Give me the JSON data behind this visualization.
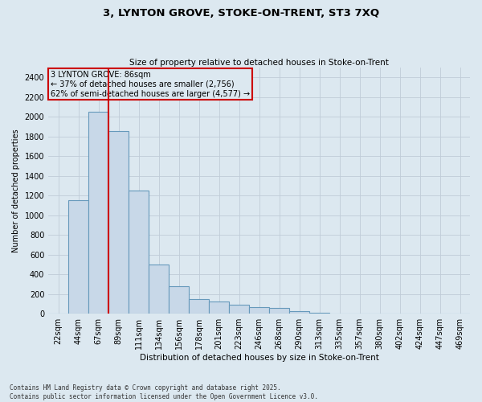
{
  "title_line1": "3, LYNTON GROVE, STOKE-ON-TRENT, ST3 7XQ",
  "title_line2": "Size of property relative to detached houses in Stoke-on-Trent",
  "xlabel": "Distribution of detached houses by size in Stoke-on-Trent",
  "ylabel": "Number of detached properties",
  "bar_labels": [
    "22sqm",
    "44sqm",
    "67sqm",
    "89sqm",
    "111sqm",
    "134sqm",
    "156sqm",
    "178sqm",
    "201sqm",
    "223sqm",
    "246sqm",
    "268sqm",
    "290sqm",
    "313sqm",
    "335sqm",
    "357sqm",
    "380sqm",
    "402sqm",
    "424sqm",
    "447sqm",
    "469sqm"
  ],
  "bar_values": [
    5,
    1150,
    2050,
    1850,
    1250,
    500,
    280,
    150,
    120,
    90,
    70,
    60,
    30,
    10,
    5,
    3,
    2,
    1,
    1,
    0,
    0
  ],
  "bar_color": "#c8d8e8",
  "bar_edge_color": "#6699bb",
  "vline_color": "#cc0000",
  "vline_x": 2.5,
  "annotation_text": "3 LYNTON GROVE: 86sqm\n← 37% of detached houses are smaller (2,756)\n62% of semi-detached houses are larger (4,577) →",
  "annotation_box_color": "#cc0000",
  "ylim": [
    0,
    2500
  ],
  "yticks": [
    0,
    200,
    400,
    600,
    800,
    1000,
    1200,
    1400,
    1600,
    1800,
    2000,
    2200,
    2400
  ],
  "grid_color": "#c0ccd8",
  "background_color": "#dce8f0",
  "footer_line1": "Contains HM Land Registry data © Crown copyright and database right 2025.",
  "footer_line2": "Contains public sector information licensed under the Open Government Licence v3.0."
}
